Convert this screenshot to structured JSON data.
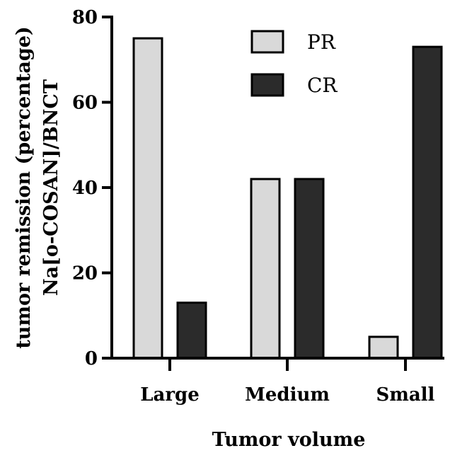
{
  "chart_data": {
    "type": "bar",
    "categories": [
      "Large",
      "Medium",
      "Small"
    ],
    "series": [
      {
        "name": "PR",
        "values": [
          75,
          42,
          5
        ],
        "color": "#d9d9d9"
      },
      {
        "name": "CR",
        "values": [
          13,
          42,
          73
        ],
        "color": "#2b2b2b"
      }
    ],
    "xlabel": "Tumor volume",
    "ylabel_lines": [
      "tumor remission (percentage)",
      "Na[o-COSAN]/BNCT"
    ],
    "ylim": [
      0,
      80
    ],
    "yticks": [
      0,
      20,
      40,
      60,
      80
    ],
    "legend_position": "top-center",
    "grid": false
  }
}
